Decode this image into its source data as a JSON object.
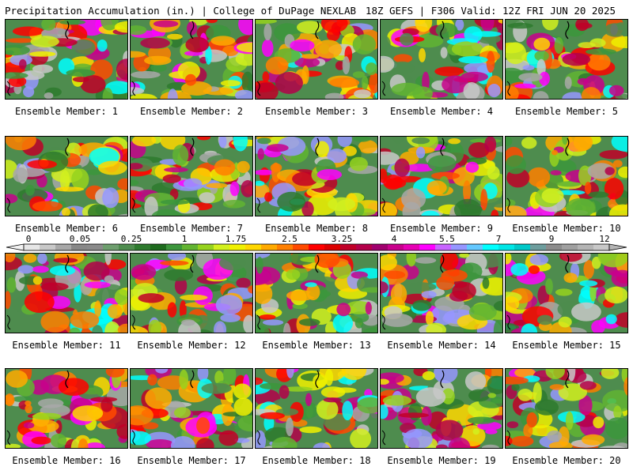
{
  "header": {
    "left_text": "Precipitation Accumulation (in.) | College of DuPage NEXLAB",
    "right_text": "18Z GEFS | F306 Valid: 12Z FRI JUN 20 2025"
  },
  "legend": {
    "tick_labels": [
      "0",
      "0.05",
      "0.25",
      "1",
      "1.75",
      "2.5",
      "3.25",
      "4",
      "5.5",
      "7",
      "9",
      "12"
    ],
    "colors": [
      "#e6e6e6",
      "#c8c8c8",
      "#a8a8a8",
      "#888888",
      "#8a8a8a",
      "#6e9e6e",
      "#4e8c4e",
      "#2e7a2e",
      "#1e6b1e",
      "#3c963c",
      "#62b432",
      "#96d21e",
      "#d2f01e",
      "#f0f000",
      "#ffd700",
      "#ffaa00",
      "#ff7f00",
      "#ff4a00",
      "#ff0000",
      "#dc0000",
      "#c00028",
      "#b4004a",
      "#a0006e",
      "#c8008c",
      "#e600b4",
      "#ff00ff",
      "#c864ff",
      "#9696ff",
      "#64c8ff",
      "#00ffff",
      "#00e6e6",
      "#00c8c8",
      "#6e9e9e",
      "#8c8c8c",
      "#a0a0a0",
      "#b4b4b4",
      "#c8c8c8"
    ]
  },
  "panels": [
    {
      "label": "Ensemble Member: 1"
    },
    {
      "label": "Ensemble Member: 2"
    },
    {
      "label": "Ensemble Member: 3"
    },
    {
      "label": "Ensemble Member: 4"
    },
    {
      "label": "Ensemble Member: 5"
    },
    {
      "label": "Ensemble Member: 6"
    },
    {
      "label": "Ensemble Member: 7"
    },
    {
      "label": "Ensemble Member: 8"
    },
    {
      "label": "Ensemble Member: 9"
    },
    {
      "label": "Ensemble Member: 10"
    },
    {
      "label": "Ensemble Member: 11"
    },
    {
      "label": "Ensemble Member: 12"
    },
    {
      "label": "Ensemble Member: 13"
    },
    {
      "label": "Ensemble Member: 14"
    },
    {
      "label": "Ensemble Member: 15"
    },
    {
      "label": "Ensemble Member: 16"
    },
    {
      "label": "Ensemble Member: 17"
    },
    {
      "label": "Ensemble Member: 18"
    },
    {
      "label": "Ensemble Member: 19"
    },
    {
      "label": "Ensemble Member: 20"
    }
  ]
}
